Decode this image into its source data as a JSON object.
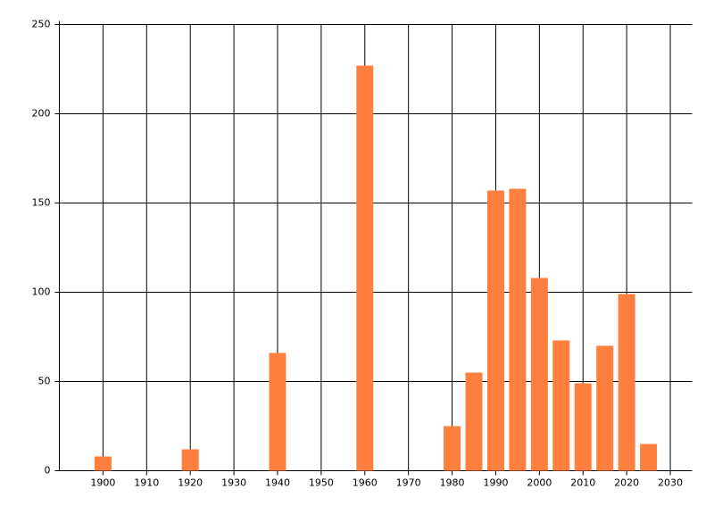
{
  "chart_data": {
    "type": "bar",
    "x": [
      1900,
      1920,
      1940,
      1960,
      1980,
      1985,
      1990,
      1995,
      2000,
      2005,
      2010,
      2015,
      2020,
      2025
    ],
    "values": [
      8,
      12,
      66,
      227,
      25,
      55,
      157,
      158,
      108,
      73,
      49,
      70,
      99,
      15
    ],
    "color": "#ff7f3f",
    "xlim": [
      1890,
      2035
    ],
    "xticks": [
      1900,
      1910,
      1920,
      1930,
      1940,
      1950,
      1960,
      1970,
      1980,
      1990,
      2000,
      2010,
      2020,
      2030
    ],
    "ylim": [
      0,
      250
    ],
    "yticks": [
      0,
      50,
      100,
      150,
      200,
      250
    ],
    "grid": true
  }
}
